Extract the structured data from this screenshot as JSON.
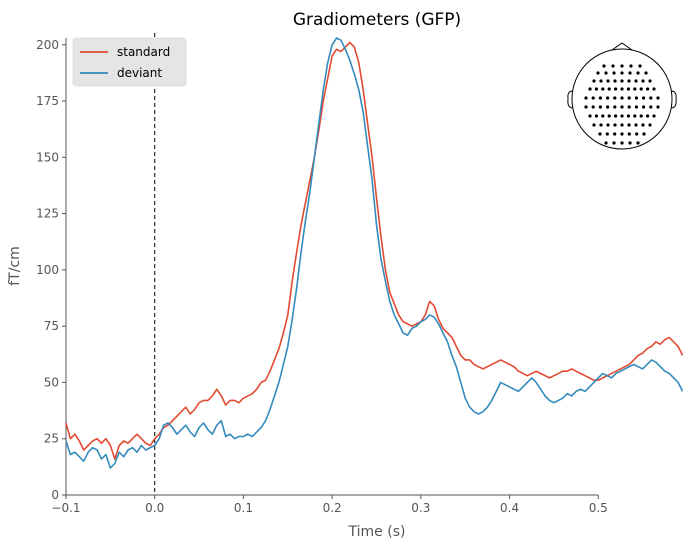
{
  "chart_data": {
    "type": "line",
    "title": "Gradiometers (GFP)",
    "xlabel": "Time (s)",
    "ylabel": "fT/cm",
    "xlim": [
      -0.1,
      0.6
    ],
    "ylim": [
      0,
      203
    ],
    "xticks": [
      -0.1,
      0.0,
      0.1,
      0.2,
      0.3,
      0.4,
      0.5
    ],
    "xtick_labels": [
      "−0.1",
      "0.0",
      "0.1",
      "0.2",
      "0.3",
      "0.4",
      "0.5"
    ],
    "yticks": [
      0,
      25,
      50,
      75,
      100,
      125,
      150,
      175,
      200
    ],
    "ytick_labels": [
      "0",
      "25",
      "50",
      "75",
      "100",
      "125",
      "150",
      "175",
      "200"
    ],
    "grid": false,
    "legend_position": "top-left",
    "event_marker_x": 0.0,
    "has_sensor_inset": true,
    "series": [
      {
        "name": "standard",
        "color": "#E24A33",
        "x": [
          -0.1,
          -0.095,
          -0.09,
          -0.085,
          -0.08,
          -0.075,
          -0.07,
          -0.065,
          -0.06,
          -0.055,
          -0.05,
          -0.045,
          -0.04,
          -0.035,
          -0.03,
          -0.025,
          -0.02,
          -0.015,
          -0.01,
          -0.005,
          0.0,
          0.005,
          0.01,
          0.015,
          0.02,
          0.025,
          0.03,
          0.035,
          0.04,
          0.045,
          0.05,
          0.055,
          0.06,
          0.065,
          0.07,
          0.075,
          0.08,
          0.085,
          0.09,
          0.095,
          0.1,
          0.105,
          0.11,
          0.115,
          0.12,
          0.125,
          0.13,
          0.135,
          0.14,
          0.145,
          0.15,
          0.155,
          0.16,
          0.165,
          0.17,
          0.175,
          0.18,
          0.185,
          0.19,
          0.195,
          0.2,
          0.205,
          0.21,
          0.215,
          0.22,
          0.225,
          0.23,
          0.235,
          0.24,
          0.245,
          0.25,
          0.255,
          0.26,
          0.265,
          0.27,
          0.275,
          0.28,
          0.285,
          0.29,
          0.295,
          0.3,
          0.305,
          0.31,
          0.315,
          0.32,
          0.325,
          0.33,
          0.335,
          0.34,
          0.345,
          0.35,
          0.355,
          0.36,
          0.365,
          0.37,
          0.375,
          0.38,
          0.385,
          0.39,
          0.395,
          0.4,
          0.405,
          0.41,
          0.415,
          0.42,
          0.425,
          0.43,
          0.435,
          0.44,
          0.445,
          0.45,
          0.455,
          0.46,
          0.465,
          0.47,
          0.475,
          0.48,
          0.485,
          0.49,
          0.495,
          0.5,
          0.505,
          0.51,
          0.515,
          0.52,
          0.525,
          0.53,
          0.535,
          0.54,
          0.545,
          0.55,
          0.555,
          0.56,
          0.565,
          0.57,
          0.575,
          0.58,
          0.585,
          0.59,
          0.595
        ],
        "y": [
          32,
          25,
          27,
          24,
          20,
          22,
          24,
          25,
          23,
          25,
          22,
          16,
          22,
          24,
          23,
          25,
          27,
          25,
          23,
          22,
          25,
          27,
          30,
          31,
          33,
          35,
          37,
          39,
          36,
          38,
          41,
          42,
          42,
          44,
          47,
          44,
          40,
          42,
          42,
          41,
          43,
          44,
          45,
          47,
          50,
          51,
          55,
          60,
          65,
          72,
          80,
          95,
          108,
          120,
          130,
          140,
          150,
          162,
          175,
          185,
          195,
          198,
          197,
          199,
          201,
          199,
          192,
          180,
          165,
          150,
          132,
          115,
          100,
          90,
          85,
          80,
          77,
          76,
          75,
          76,
          77,
          80,
          86,
          84,
          78,
          74,
          72,
          70,
          66,
          62,
          60,
          60,
          58,
          57,
          56,
          57,
          58,
          59,
          60,
          59,
          58,
          57,
          55,
          54,
          53,
          54,
          55,
          54,
          53,
          52,
          53,
          54,
          55,
          55,
          56,
          55,
          54,
          53,
          52,
          51,
          51,
          52,
          53,
          54,
          55,
          56,
          57,
          58,
          60,
          62,
          63,
          65,
          66,
          68,
          67,
          69,
          70,
          68,
          66,
          62
        ]
      },
      {
        "name": "deviant",
        "color": "#348ABD",
        "x": [
          -0.1,
          -0.095,
          -0.09,
          -0.085,
          -0.08,
          -0.075,
          -0.07,
          -0.065,
          -0.06,
          -0.055,
          -0.05,
          -0.045,
          -0.04,
          -0.035,
          -0.03,
          -0.025,
          -0.02,
          -0.015,
          -0.01,
          -0.005,
          0.0,
          0.005,
          0.01,
          0.015,
          0.02,
          0.025,
          0.03,
          0.035,
          0.04,
          0.045,
          0.05,
          0.055,
          0.06,
          0.065,
          0.07,
          0.075,
          0.08,
          0.085,
          0.09,
          0.095,
          0.1,
          0.105,
          0.11,
          0.115,
          0.12,
          0.125,
          0.13,
          0.135,
          0.14,
          0.145,
          0.15,
          0.155,
          0.16,
          0.165,
          0.17,
          0.175,
          0.18,
          0.185,
          0.19,
          0.195,
          0.2,
          0.205,
          0.21,
          0.215,
          0.22,
          0.225,
          0.23,
          0.235,
          0.24,
          0.245,
          0.25,
          0.255,
          0.26,
          0.265,
          0.27,
          0.275,
          0.28,
          0.285,
          0.29,
          0.295,
          0.3,
          0.305,
          0.31,
          0.315,
          0.32,
          0.325,
          0.33,
          0.335,
          0.34,
          0.345,
          0.35,
          0.355,
          0.36,
          0.365,
          0.37,
          0.375,
          0.38,
          0.385,
          0.39,
          0.395,
          0.4,
          0.405,
          0.41,
          0.415,
          0.42,
          0.425,
          0.43,
          0.435,
          0.44,
          0.445,
          0.45,
          0.455,
          0.46,
          0.465,
          0.47,
          0.475,
          0.48,
          0.485,
          0.49,
          0.495,
          0.5,
          0.505,
          0.51,
          0.515,
          0.52,
          0.525,
          0.53,
          0.535,
          0.54,
          0.545,
          0.55,
          0.555,
          0.56,
          0.565,
          0.57,
          0.575,
          0.58,
          0.585,
          0.59,
          0.595
        ],
        "y": [
          24,
          18,
          19,
          17,
          15,
          19,
          21,
          20,
          16,
          18,
          12,
          14,
          19,
          17,
          20,
          21,
          19,
          22,
          20,
          21,
          22,
          25,
          31,
          32,
          30,
          27,
          29,
          31,
          28,
          26,
          30,
          32,
          29,
          27,
          31,
          33,
          26,
          27,
          25,
          26,
          26,
          27,
          26,
          28,
          30,
          33,
          38,
          44,
          50,
          58,
          66,
          78,
          92,
          108,
          122,
          135,
          150,
          165,
          180,
          192,
          200,
          203,
          202,
          198,
          193,
          187,
          180,
          170,
          155,
          140,
          120,
          105,
          95,
          86,
          80,
          76,
          72,
          71,
          74,
          75,
          77,
          78,
          80,
          79,
          76,
          72,
          68,
          62,
          57,
          50,
          43,
          39,
          37,
          36,
          37,
          39,
          42,
          46,
          50,
          49,
          48,
          47,
          46,
          48,
          50,
          52,
          50,
          47,
          44,
          42,
          41,
          42,
          43,
          45,
          44,
          46,
          47,
          46,
          48,
          50,
          52,
          54,
          53,
          52,
          54,
          55,
          56,
          57,
          58,
          57,
          56,
          58,
          60,
          59,
          57,
          55,
          54,
          52,
          50,
          46
        ]
      }
    ]
  }
}
